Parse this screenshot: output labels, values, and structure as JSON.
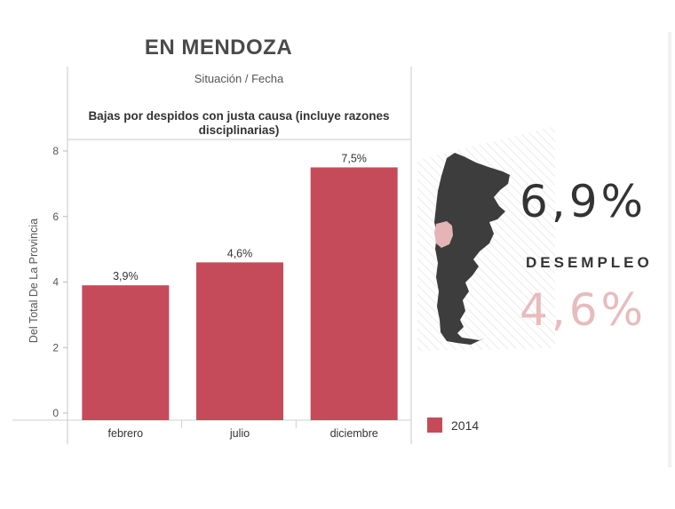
{
  "header": {
    "title": "EN MENDOZA",
    "breadcrumb": "Situación  /  Fecha"
  },
  "colors": {
    "bar": "#c64b5a",
    "map_dark": "#3d3d3d",
    "map_highlight": "#e5b4b4",
    "secondary_stat": "#e7bcbc"
  },
  "stats": {
    "primary": "6,9%",
    "label": "DESEMPLEO",
    "secondary": "4,6%"
  },
  "map": {
    "icon": "argentina-map-icon"
  },
  "legend": {
    "items": [
      {
        "label": "2014",
        "color": "#c64b5a"
      }
    ]
  },
  "chart_data": {
    "type": "bar",
    "title": "Bajas por despidos con justa causa (incluye razones disciplinarias)",
    "categories": [
      "febrero",
      "julio",
      "diciembre"
    ],
    "values": [
      3.9,
      4.6,
      7.5
    ],
    "value_labels": [
      "3,9%",
      "4,6%",
      "7,5%"
    ],
    "ylabel": "Del Total De La Provincia",
    "xlabel": "",
    "ylim": [
      0,
      8
    ],
    "yticks": [
      0,
      2,
      4,
      6,
      8
    ],
    "series": [
      {
        "name": "2014",
        "values": [
          3.9,
          4.6,
          7.5
        ]
      }
    ],
    "grid": false
  }
}
